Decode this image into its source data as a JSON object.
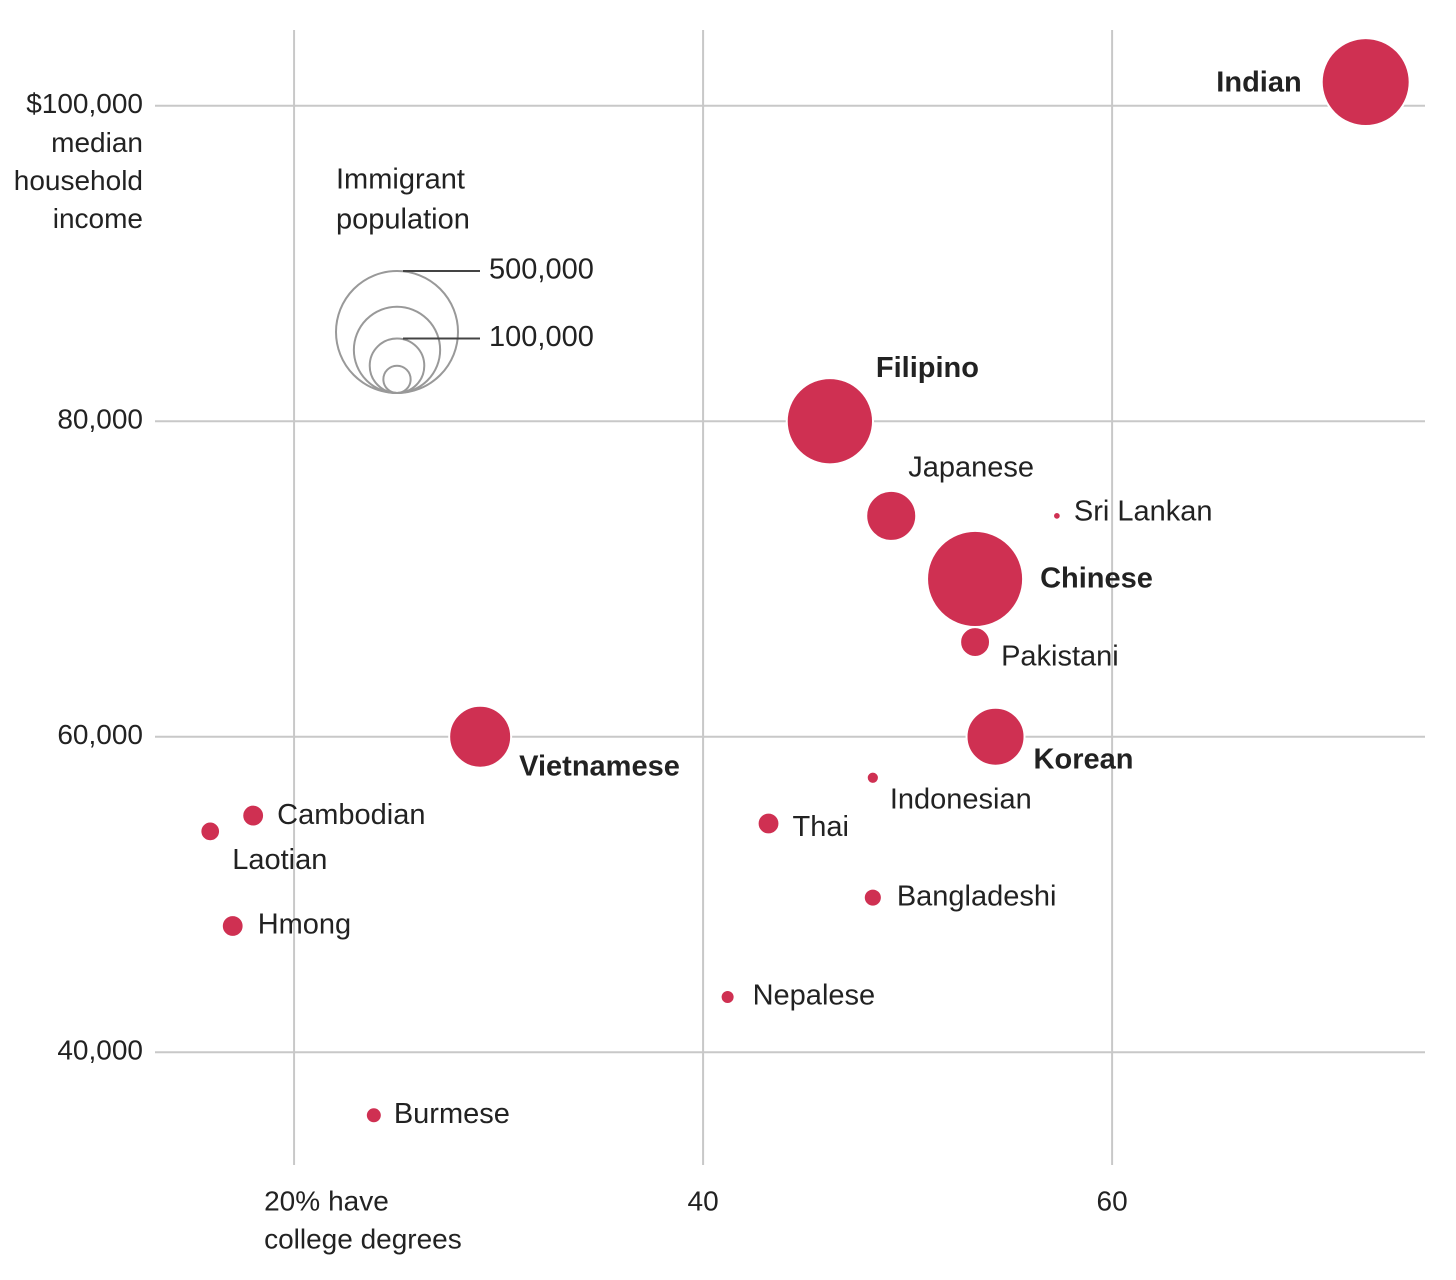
{
  "chart_data": {
    "type": "scatter",
    "xlim": [
      13.2,
      75.3
    ],
    "ylim": [
      32850,
      104800
    ],
    "xticks": [
      {
        "value": 20,
        "label": "20%"
      },
      40,
      60
    ],
    "yticks": [
      {
        "value": 100000,
        "label": "$100,000"
      },
      {
        "value": 80000,
        "label": "80,000"
      },
      {
        "value": 60000,
        "label": "60,000"
      },
      {
        "value": 40000,
        "label": "40,000"
      }
    ],
    "x_label_lines": [
      "have",
      "college degrees"
    ],
    "y_label_lines": [
      "median",
      "household",
      "income"
    ],
    "grid": true,
    "color": "#cf3052",
    "size_legend": {
      "title_lines": [
        "Immigrant",
        "population"
      ],
      "sizes": [
        {
          "value": 500000,
          "label": "500,000"
        },
        {
          "value": 250000,
          "label": null
        },
        {
          "value": 100000,
          "label": "100,000"
        },
        {
          "value": 25000,
          "label": null
        }
      ]
    },
    "points": [
      {
        "name": "Indian",
        "x": 72.4,
        "y": 101500,
        "size": 260000,
        "bold": true
      },
      {
        "name": "Filipino",
        "x": 46.2,
        "y": 80000,
        "size": 250000,
        "bold": true
      },
      {
        "name": "Japanese",
        "x": 49.2,
        "y": 74000,
        "size": 84000,
        "bold": false
      },
      {
        "name": "Sri Lankan",
        "x": 57.3,
        "y": 74000,
        "size": 2000,
        "bold": false
      },
      {
        "name": "Chinese",
        "x": 53.3,
        "y": 70000,
        "size": 310000,
        "bold": true
      },
      {
        "name": "Pakistani",
        "x": 53.3,
        "y": 66000,
        "size": 30000,
        "bold": false
      },
      {
        "name": "Korean",
        "x": 54.3,
        "y": 60000,
        "size": 113000,
        "bold": true
      },
      {
        "name": "Vietnamese",
        "x": 29.1,
        "y": 60000,
        "size": 129000,
        "bold": true
      },
      {
        "name": "Indonesian",
        "x": 48.3,
        "y": 57400,
        "size": 5000,
        "bold": false
      },
      {
        "name": "Cambodian",
        "x": 18.0,
        "y": 55000,
        "size": 16000,
        "bold": false
      },
      {
        "name": "Laotian",
        "x": 15.9,
        "y": 54000,
        "size": 13000,
        "bold": false
      },
      {
        "name": "Thai",
        "x": 43.2,
        "y": 54500,
        "size": 16000,
        "bold": false
      },
      {
        "name": "Bangladeshi",
        "x": 48.3,
        "y": 49800,
        "size": 11000,
        "bold": false
      },
      {
        "name": "Hmong",
        "x": 17.0,
        "y": 48000,
        "size": 16000,
        "bold": false
      },
      {
        "name": "Nepalese",
        "x": 41.2,
        "y": 43500,
        "size": 6600,
        "bold": false
      },
      {
        "name": "Burmese",
        "x": 23.9,
        "y": 36000,
        "size": 8600,
        "bold": false
      }
    ]
  }
}
